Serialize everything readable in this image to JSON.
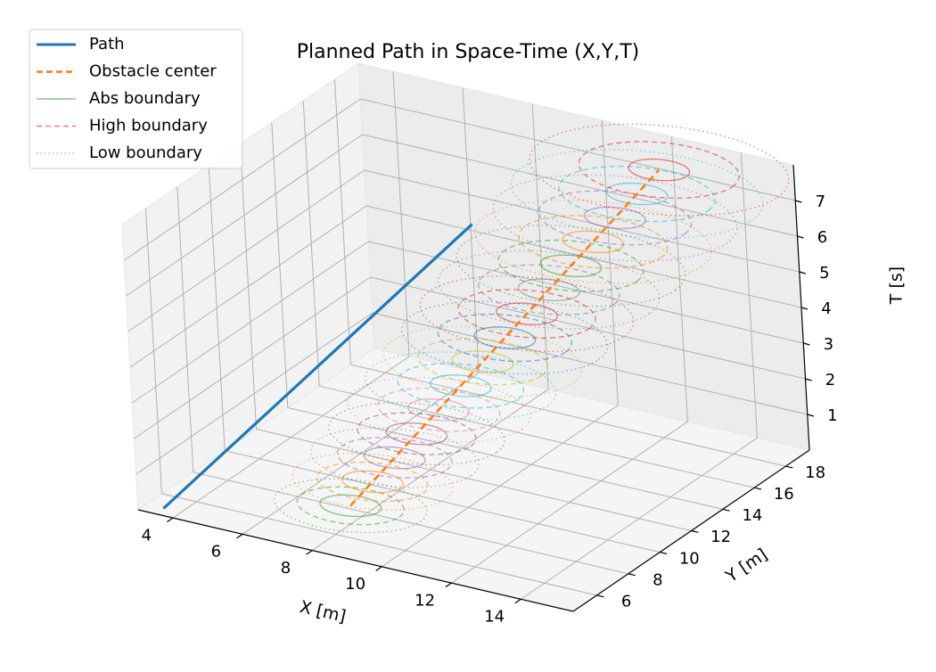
{
  "chart_data": {
    "type": "line3d",
    "title": "Planned Path in Space-Time (X,Y,T)",
    "xlabel": "X [m]",
    "ylabel": "Y [m]",
    "zlabel": "T [s]",
    "xlim": [
      3,
      15.5
    ],
    "ylim": [
      4.5,
      19.5
    ],
    "zlim": [
      0,
      8
    ],
    "xticks": [
      "4",
      "6",
      "8",
      "10",
      "12",
      "14"
    ],
    "yticks": [
      "6",
      "8",
      "10",
      "12",
      "14",
      "16",
      "18"
    ],
    "zticks": [
      "1",
      "2",
      "3",
      "4",
      "5",
      "6",
      "7"
    ],
    "grid": true,
    "legend_position": "top-left",
    "legend": [
      "Path",
      "Obstacle center",
      "Abs boundary",
      "High boundary",
      "Low boundary"
    ],
    "series": [
      {
        "name": "Path",
        "style": "solid",
        "color": "#1f77b4",
        "x": [
          3.5,
          4.2,
          4.9,
          5.6,
          6.3,
          7.0
        ],
        "y": [
          5.0,
          7.5,
          10.0,
          12.5,
          15.0,
          17.5
        ],
        "t": [
          0.0,
          1.0,
          2.0,
          3.0,
          4.0,
          5.0
        ]
      },
      {
        "name": "Obstacle center",
        "style": "dashed",
        "color": "#ff7f0e",
        "x": [
          8.0,
          8.6,
          9.2,
          9.8,
          10.4,
          11.0,
          11.6,
          12.2
        ],
        "y": [
          7.0,
          8.6,
          10.2,
          11.8,
          13.4,
          15.0,
          16.6,
          18.2
        ],
        "t": [
          0.5,
          1.5,
          2.5,
          3.5,
          4.5,
          5.5,
          6.5,
          7.5
        ]
      }
    ],
    "boundary_rings": {
      "t_values": [
        0.5,
        1.0,
        1.5,
        2.0,
        2.5,
        3.0,
        3.5,
        4.0,
        4.5,
        5.0,
        5.5,
        6.0,
        6.5,
        7.0,
        7.5
      ],
      "abs_radius": [
        0.8,
        0.8,
        0.8,
        0.8,
        0.8,
        0.8,
        0.8,
        0.8,
        0.8,
        0.8,
        0.8,
        0.8,
        0.8,
        0.8,
        0.8
      ],
      "high_radius": [
        1.4,
        1.45,
        1.5,
        1.55,
        1.6,
        1.65,
        1.7,
        1.75,
        1.8,
        1.85,
        1.9,
        1.95,
        2.0,
        2.05,
        2.1
      ],
      "low_radius": [
        2.0,
        2.1,
        2.2,
        2.3,
        2.4,
        2.5,
        2.6,
        2.7,
        2.8,
        2.9,
        3.0,
        3.1,
        3.2,
        3.3,
        3.4
      ],
      "colors": [
        "#2ca02c",
        "#ff7f0e",
        "#9467bd",
        "#8c564b",
        "#e377c2",
        "#17becf",
        "#bcbd22",
        "#1f77b4",
        "#d62728",
        "#7f7f7f",
        "#2ca02c",
        "#ff7f0e",
        "#9467bd",
        "#17becf",
        "#d62728"
      ]
    },
    "colors": {
      "path": "#1f77b4",
      "obstacle": "#ff7f0e",
      "abs": "#2ca02c",
      "high": "#d62728",
      "low": "#9467bd"
    }
  }
}
